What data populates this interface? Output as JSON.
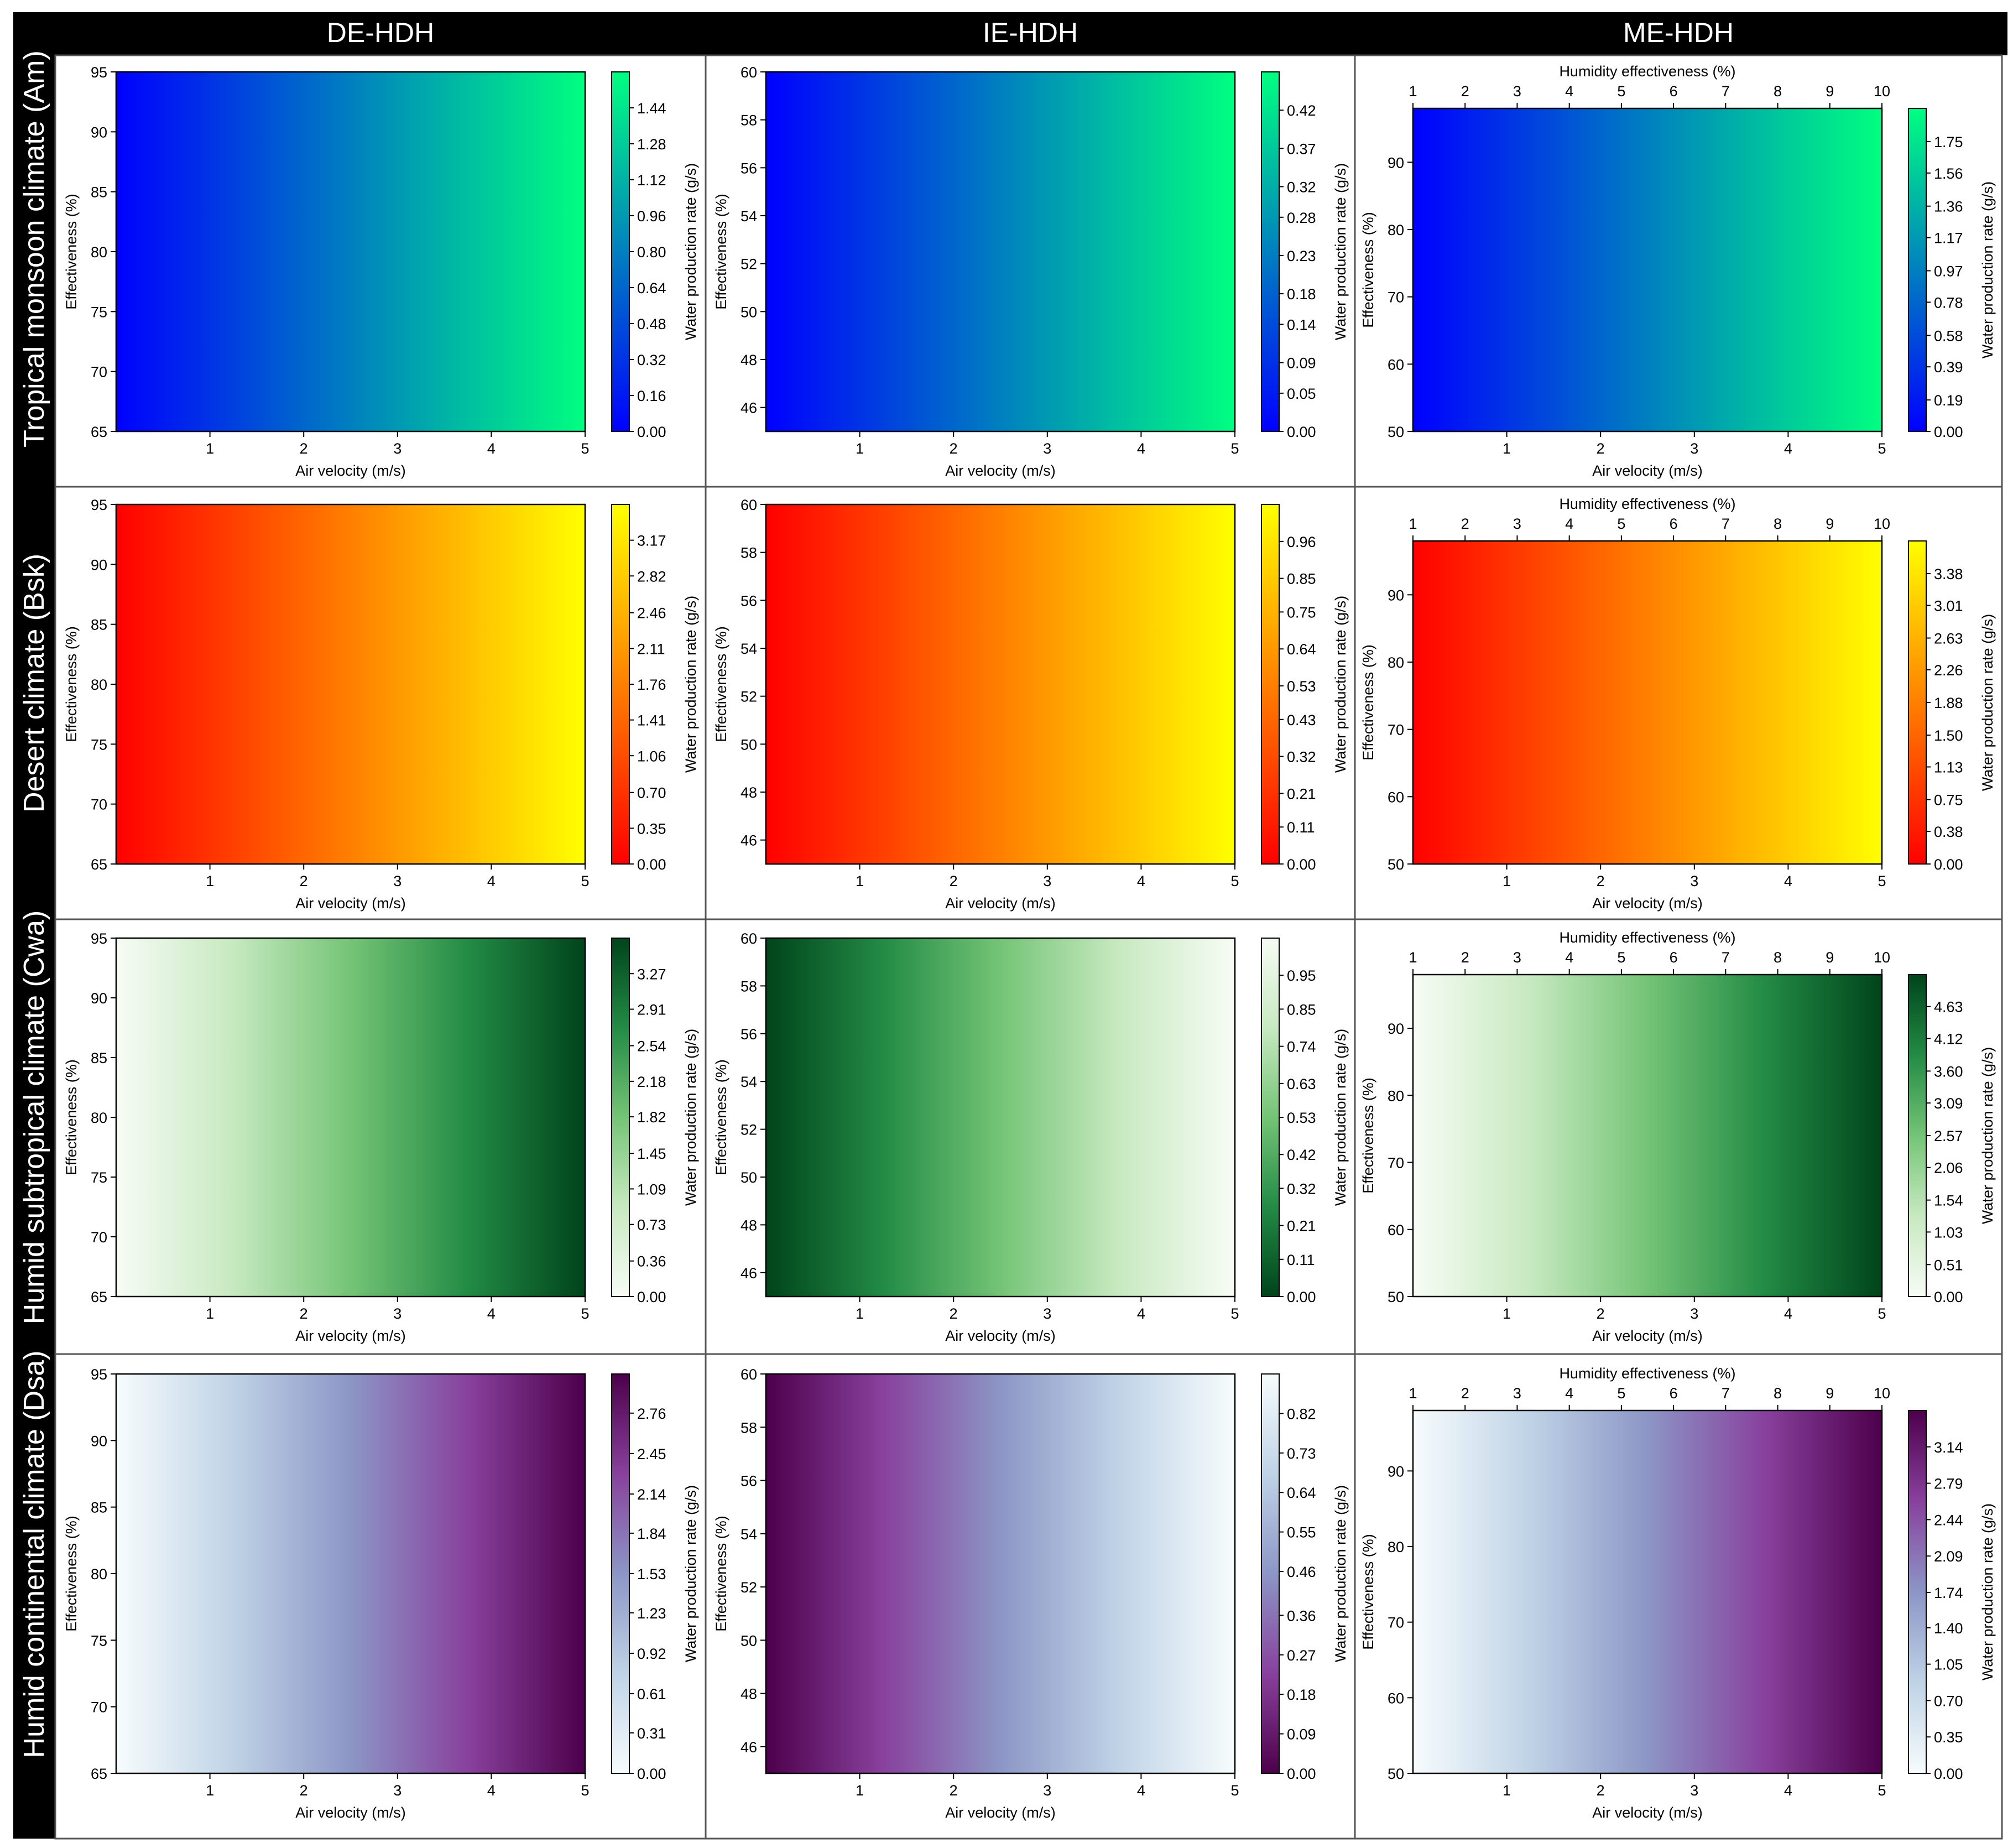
{
  "headers": {
    "col1": "DE-HDH",
    "col2": "IE-HDH",
    "col3": "ME-HDH"
  },
  "row_labels": {
    "row1": "Tropical monsoon climate (Am)",
    "row2": "Desert climate (Bsk)",
    "row3": "Humid subtropical climate (Cwa)",
    "row4": "Humid continental climate (Dsa)"
  },
  "colormaps": {
    "winter": [
      "#0000ff",
      "#00ff80"
    ],
    "autumn": [
      "#ff0000",
      "#ffff00"
    ],
    "greens": [
      "#f7fcf5",
      "#c7e9c0",
      "#74c476",
      "#238b45",
      "#00441b"
    ],
    "bupu": [
      "#f7fcfd",
      "#bfd3e6",
      "#8c96c6",
      "#88419d",
      "#4d004b"
    ]
  },
  "chart_data": [
    {
      "type": "heatmap",
      "row": 1,
      "col": 1,
      "cmap": "winter",
      "reverse": false,
      "xlabel": "Air velocity (m/s)",
      "ylabel": "Effectiveness (%)",
      "cbar_label": "Water production rate (g/s)",
      "x_ticks": [
        1,
        2,
        3,
        4,
        5
      ],
      "xlim": [
        0,
        5
      ],
      "y_ticks": [
        65,
        70,
        75,
        80,
        85,
        90,
        95
      ],
      "ylim": [
        65,
        95
      ],
      "cbar_ticks": [
        "0.00",
        "0.16",
        "0.32",
        "0.48",
        "0.64",
        "0.80",
        "0.96",
        "1.12",
        "1.28",
        "1.44"
      ],
      "cbar_range": [
        0,
        1.6
      ]
    },
    {
      "type": "heatmap",
      "row": 1,
      "col": 2,
      "cmap": "winter",
      "reverse": false,
      "xlabel": "Air velocity (m/s)",
      "ylabel": "Effectiveness (%)",
      "cbar_label": "Water production rate (g/s)",
      "x_ticks": [
        1,
        2,
        3,
        4,
        5
      ],
      "xlim": [
        0,
        5
      ],
      "y_ticks": [
        46,
        48,
        50,
        52,
        54,
        56,
        58,
        60
      ],
      "ylim": [
        45,
        60
      ],
      "cbar_ticks": [
        "0.00",
        "0.05",
        "0.09",
        "0.14",
        "0.18",
        "0.23",
        "0.28",
        "0.32",
        "0.37",
        "0.42"
      ],
      "cbar_range": [
        0,
        0.47
      ]
    },
    {
      "type": "heatmap",
      "row": 1,
      "col": 3,
      "cmap": "winter",
      "reverse": false,
      "top_xlabel": "Humidity effectiveness (%)",
      "top_ticks": [
        1,
        2,
        3,
        4,
        5,
        6,
        7,
        8,
        9,
        10
      ],
      "xlabel": "Air velocity (m/s)",
      "ylabel": "Effectiveness (%)",
      "cbar_label": "Water production rate (g/s)",
      "x_ticks": [
        1,
        2,
        3,
        4,
        5
      ],
      "xlim": [
        0,
        5
      ],
      "y_ticks": [
        50,
        60,
        70,
        80,
        90
      ],
      "ylim": [
        50,
        98
      ],
      "cbar_ticks": [
        "0.00",
        "0.19",
        "0.39",
        "0.58",
        "0.78",
        "0.97",
        "1.17",
        "1.36",
        "1.56",
        "1.75"
      ],
      "cbar_range": [
        0,
        1.95
      ]
    },
    {
      "type": "heatmap",
      "row": 2,
      "col": 1,
      "cmap": "autumn",
      "reverse": false,
      "xlabel": "Air velocity (m/s)",
      "ylabel": "Effectiveness (%)",
      "cbar_label": "Water production rate (g/s)",
      "x_ticks": [
        1,
        2,
        3,
        4,
        5
      ],
      "xlim": [
        0,
        5
      ],
      "y_ticks": [
        65,
        70,
        75,
        80,
        85,
        90,
        95
      ],
      "ylim": [
        65,
        95
      ],
      "cbar_ticks": [
        "0.00",
        "0.35",
        "0.70",
        "1.06",
        "1.41",
        "1.76",
        "2.11",
        "2.46",
        "2.82",
        "3.17"
      ],
      "cbar_range": [
        0,
        3.52
      ]
    },
    {
      "type": "heatmap",
      "row": 2,
      "col": 2,
      "cmap": "autumn",
      "reverse": false,
      "xlabel": "Air velocity (m/s)",
      "ylabel": "Effectiveness (%)",
      "cbar_label": "Water production rate (g/s)",
      "x_ticks": [
        1,
        2,
        3,
        4,
        5
      ],
      "xlim": [
        0,
        5
      ],
      "y_ticks": [
        46,
        48,
        50,
        52,
        54,
        56,
        58,
        60
      ],
      "ylim": [
        45,
        60
      ],
      "cbar_ticks": [
        "0.00",
        "0.11",
        "0.21",
        "0.32",
        "0.43",
        "0.53",
        "0.64",
        "0.75",
        "0.85",
        "0.96"
      ],
      "cbar_range": [
        0,
        1.07
      ]
    },
    {
      "type": "heatmap",
      "row": 2,
      "col": 3,
      "cmap": "autumn",
      "reverse": false,
      "top_xlabel": "Humidity effectiveness (%)",
      "top_ticks": [
        1,
        2,
        3,
        4,
        5,
        6,
        7,
        8,
        9,
        10
      ],
      "xlabel": "Air velocity (m/s)",
      "ylabel": "Effectiveness (%)",
      "cbar_label": "Water production rate (g/s)",
      "x_ticks": [
        1,
        2,
        3,
        4,
        5
      ],
      "xlim": [
        0,
        5
      ],
      "y_ticks": [
        50,
        60,
        70,
        80,
        90
      ],
      "ylim": [
        50,
        98
      ],
      "cbar_ticks": [
        "0.00",
        "0.38",
        "0.75",
        "1.13",
        "1.50",
        "1.88",
        "2.26",
        "2.63",
        "3.01",
        "3.38"
      ],
      "cbar_range": [
        0,
        3.76
      ]
    },
    {
      "type": "heatmap",
      "row": 3,
      "col": 1,
      "cmap": "greens",
      "reverse": false,
      "xlabel": "Air velocity (m/s)",
      "ylabel": "Effectiveness (%)",
      "cbar_label": "Water production rate (g/s)",
      "x_ticks": [
        1,
        2,
        3,
        4,
        5
      ],
      "xlim": [
        0,
        5
      ],
      "y_ticks": [
        65,
        70,
        75,
        80,
        85,
        90,
        95
      ],
      "ylim": [
        65,
        95
      ],
      "cbar_ticks": [
        "0.00",
        "0.36",
        "0.73",
        "1.09",
        "1.45",
        "1.82",
        "2.18",
        "2.54",
        "2.91",
        "3.27"
      ],
      "cbar_range": [
        0,
        3.63
      ]
    },
    {
      "type": "heatmap",
      "row": 3,
      "col": 2,
      "cmap": "greens",
      "reverse": true,
      "xlabel": "Air velocity (m/s)",
      "ylabel": "Effectiveness (%)",
      "cbar_label": "Water production rate (g/s)",
      "x_ticks": [
        1,
        2,
        3,
        4,
        5
      ],
      "xlim": [
        0,
        5
      ],
      "y_ticks": [
        46,
        48,
        50,
        52,
        54,
        56,
        58,
        60
      ],
      "ylim": [
        45,
        60
      ],
      "cbar_ticks": [
        "0.00",
        "0.11",
        "0.21",
        "0.32",
        "0.42",
        "0.53",
        "0.63",
        "0.74",
        "0.85",
        "0.95"
      ],
      "cbar_range": [
        0,
        1.06
      ]
    },
    {
      "type": "heatmap",
      "row": 3,
      "col": 3,
      "cmap": "greens",
      "reverse": false,
      "top_xlabel": "Humidity effectiveness (%)",
      "top_ticks": [
        1,
        2,
        3,
        4,
        5,
        6,
        7,
        8,
        9,
        10
      ],
      "xlabel": "Air velocity (m/s)",
      "ylabel": "Effectiveness (%)",
      "cbar_label": "Water production rate (g/s)",
      "x_ticks": [
        1,
        2,
        3,
        4,
        5
      ],
      "xlim": [
        0,
        5
      ],
      "y_ticks": [
        50,
        60,
        70,
        80,
        90
      ],
      "ylim": [
        50,
        98
      ],
      "cbar_ticks": [
        "0.00",
        "0.51",
        "1.03",
        "1.54",
        "2.06",
        "2.57",
        "3.09",
        "3.60",
        "4.12",
        "4.63"
      ],
      "cbar_range": [
        0,
        5.14
      ]
    },
    {
      "type": "heatmap",
      "row": 4,
      "col": 1,
      "cmap": "bupu",
      "reverse": false,
      "xlabel": "Air velocity (m/s)",
      "ylabel": "Effectiveness (%)",
      "cbar_label": "Water production rate (g/s)",
      "x_ticks": [
        1,
        2,
        3,
        4,
        5
      ],
      "xlim": [
        0,
        5
      ],
      "y_ticks": [
        65,
        70,
        75,
        80,
        85,
        90,
        95
      ],
      "ylim": [
        65,
        95
      ],
      "cbar_ticks": [
        "0.00",
        "0.31",
        "0.61",
        "0.92",
        "1.23",
        "1.53",
        "1.84",
        "2.14",
        "2.45",
        "2.76"
      ],
      "cbar_range": [
        0,
        3.06
      ]
    },
    {
      "type": "heatmap",
      "row": 4,
      "col": 2,
      "cmap": "bupu",
      "reverse": true,
      "xlabel": "Air velocity (m/s)",
      "ylabel": "Effectiveness (%)",
      "cbar_label": "Water production rate (g/s)",
      "x_ticks": [
        1,
        2,
        3,
        4,
        5
      ],
      "xlim": [
        0,
        5
      ],
      "y_ticks": [
        46,
        48,
        50,
        52,
        54,
        56,
        58,
        60
      ],
      "ylim": [
        45,
        60
      ],
      "cbar_ticks": [
        "0.00",
        "0.09",
        "0.18",
        "0.27",
        "0.36",
        "0.46",
        "0.55",
        "0.64",
        "0.73",
        "0.82"
      ],
      "cbar_range": [
        0,
        0.91
      ]
    },
    {
      "type": "heatmap",
      "row": 4,
      "col": 3,
      "cmap": "bupu",
      "reverse": false,
      "top_xlabel": "Humidity effectiveness (%)",
      "top_ticks": [
        1,
        2,
        3,
        4,
        5,
        6,
        7,
        8,
        9,
        10
      ],
      "xlabel": "Air velocity (m/s)",
      "ylabel": "Effectiveness (%)",
      "cbar_label": "Water production rate (g/s)",
      "x_ticks": [
        1,
        2,
        3,
        4,
        5
      ],
      "xlim": [
        0,
        5
      ],
      "y_ticks": [
        50,
        60,
        70,
        80,
        90
      ],
      "ylim": [
        50,
        98
      ],
      "cbar_ticks": [
        "0.00",
        "0.35",
        "0.70",
        "1.05",
        "1.40",
        "1.74",
        "2.09",
        "2.44",
        "2.79",
        "3.14"
      ],
      "cbar_range": [
        0,
        3.49
      ]
    }
  ]
}
